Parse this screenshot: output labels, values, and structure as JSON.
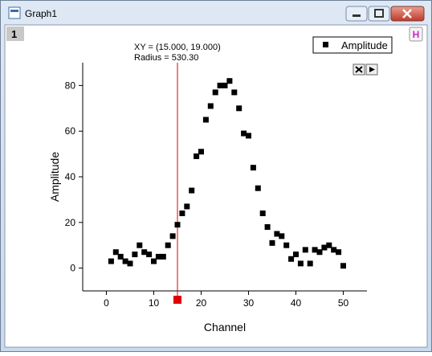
{
  "window": {
    "title": "Graph1",
    "layer": "1",
    "h_button": "H"
  },
  "chart_data": {
    "type": "scatter",
    "x_label": "Channel",
    "y_label": "Amplitude",
    "x": [
      1,
      2,
      3,
      4,
      5,
      6,
      7,
      8,
      9,
      10,
      11,
      12,
      13,
      14,
      15,
      16,
      17,
      18,
      19,
      20,
      21,
      22,
      23,
      24,
      25,
      26,
      27,
      28,
      29,
      30,
      31,
      32,
      33,
      34,
      35,
      36,
      37,
      38,
      39,
      40,
      41,
      42,
      43,
      44,
      45,
      46,
      47,
      48,
      49,
      50
    ],
    "series": [
      {
        "name": "Amplitude",
        "color": "#000000",
        "values": [
          3,
          7,
          5,
          3,
          2,
          6,
          10,
          7,
          6,
          3,
          5,
          5,
          10,
          14,
          19,
          24,
          27,
          34,
          49,
          51,
          65,
          71,
          77,
          80,
          80,
          82,
          77,
          70,
          59,
          58,
          44,
          35,
          24,
          18,
          11,
          15,
          14,
          10,
          4,
          6,
          2,
          8,
          2,
          8,
          7,
          9,
          10,
          8,
          7,
          1
        ]
      }
    ],
    "xlim": [
      -5,
      55
    ],
    "xticks": [
      0,
      10,
      20,
      30,
      40,
      50
    ],
    "ylim": [
      -10,
      90
    ],
    "yticks": [
      0,
      20,
      40,
      60,
      80
    ],
    "legend": "top-right",
    "cursor": {
      "x": 15,
      "color": "#e00000",
      "label_xy": "XY = (15.000, 19.000)",
      "label_radius": "Radius = 530.30"
    }
  }
}
